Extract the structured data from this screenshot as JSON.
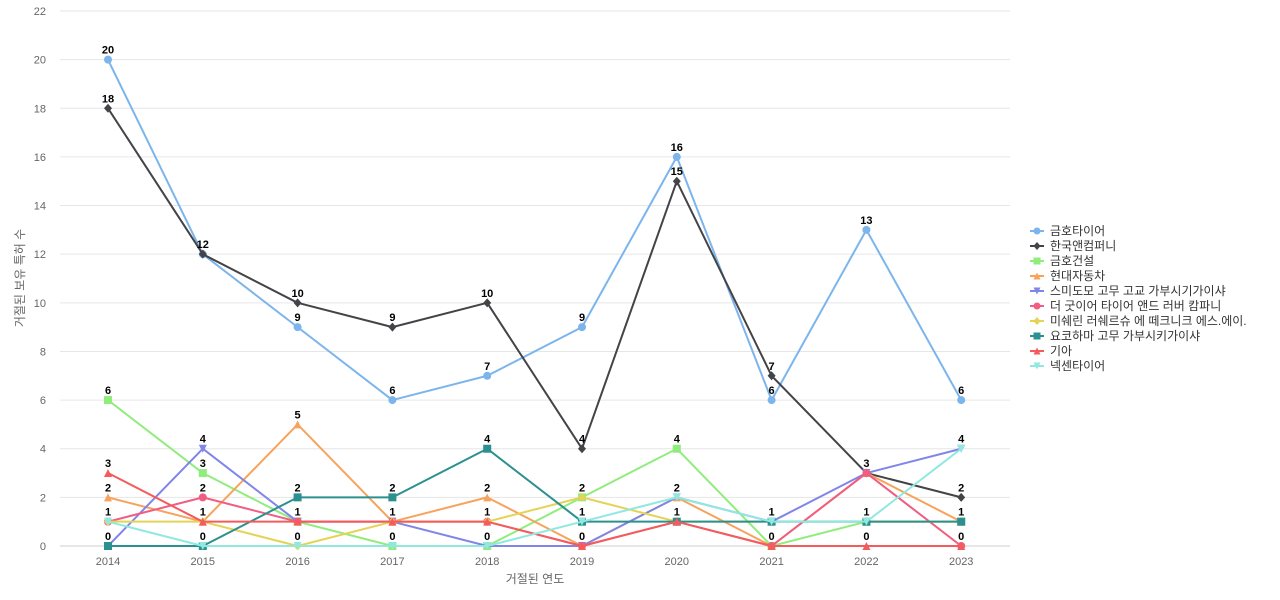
{
  "chart_data": {
    "type": "line",
    "xlabel": "거절된 연도",
    "ylabel": "거절된 보유 특허 수",
    "ylim": [
      0,
      22
    ],
    "yticks": [
      0,
      2,
      4,
      6,
      8,
      10,
      12,
      14,
      16,
      18,
      20,
      22
    ],
    "categories": [
      "2014",
      "2015",
      "2016",
      "2017",
      "2018",
      "2019",
      "2020",
      "2021",
      "2022",
      "2023"
    ],
    "grid": true,
    "legend_position": "right",
    "series": [
      {
        "name": "금호타이어",
        "color": "#7cb5ec",
        "marker": "circle",
        "values": [
          20,
          12,
          9,
          6,
          7,
          9,
          16,
          6,
          13,
          6
        ]
      },
      {
        "name": "한국앤컴퍼니",
        "color": "#434348",
        "marker": "diamond",
        "values": [
          18,
          12,
          10,
          9,
          10,
          4,
          15,
          7,
          3,
          2
        ]
      },
      {
        "name": "금호건설",
        "color": "#90ed7d",
        "marker": "square",
        "values": [
          6,
          3,
          1,
          0,
          0,
          2,
          4,
          0,
          1,
          1
        ]
      },
      {
        "name": "현대자동차",
        "color": "#f7a35c",
        "marker": "triangle",
        "values": [
          2,
          1,
          5,
          1,
          2,
          0,
          2,
          0,
          3,
          1
        ]
      },
      {
        "name": "스미도모 고무 고교 가부시기가이샤",
        "color": "#8085e9",
        "marker": "triangle-down",
        "values": [
          0,
          4,
          1,
          1,
          0,
          0,
          2,
          1,
          3,
          4
        ]
      },
      {
        "name": "더 굿이어 타이어 앤드 러버 캄파니",
        "color": "#f15c80",
        "marker": "circle",
        "values": [
          1,
          2,
          1,
          1,
          1,
          0,
          1,
          0,
          3,
          0
        ]
      },
      {
        "name": "미쉐린 러쉐르슈 에 떼크니크 에스.에이.",
        "color": "#e4d354",
        "marker": "diamond",
        "values": [
          1,
          1,
          0,
          1,
          1,
          2,
          1,
          1,
          1,
          1
        ]
      },
      {
        "name": "요코하마 고무 가부시키가이샤",
        "color": "#2b908f",
        "marker": "square",
        "values": [
          0,
          0,
          2,
          2,
          4,
          1,
          1,
          1,
          1,
          1
        ]
      },
      {
        "name": "기아",
        "color": "#f45b5b",
        "marker": "triangle",
        "values": [
          3,
          1,
          1,
          1,
          1,
          0,
          1,
          0,
          0,
          0
        ]
      },
      {
        "name": "넥센타이어",
        "color": "#91e8e1",
        "marker": "triangle-down",
        "values": [
          1,
          0,
          0,
          0,
          0,
          1,
          2,
          1,
          1,
          4
        ]
      }
    ],
    "data_labels": [
      {
        "series": 0,
        "index": 0,
        "text": "20"
      },
      {
        "series": 1,
        "index": 0,
        "text": "18"
      },
      {
        "series": 2,
        "index": 0,
        "text": "6"
      },
      {
        "series": 8,
        "index": 0,
        "text": "3"
      },
      {
        "series": 3,
        "index": 0,
        "text": "2"
      },
      {
        "series": 5,
        "index": 0,
        "text": "1"
      },
      {
        "series": 4,
        "index": 0,
        "text": "0"
      },
      {
        "series": 0,
        "index": 1,
        "text": "12"
      },
      {
        "series": 4,
        "index": 1,
        "text": "4"
      },
      {
        "series": 2,
        "index": 1,
        "text": "3"
      },
      {
        "series": 5,
        "index": 1,
        "text": "2"
      },
      {
        "series": 3,
        "index": 1,
        "text": "1"
      },
      {
        "series": 7,
        "index": 1,
        "text": "0"
      },
      {
        "series": 1,
        "index": 2,
        "text": "10"
      },
      {
        "series": 0,
        "index": 2,
        "text": "9"
      },
      {
        "series": 3,
        "index": 2,
        "text": "5"
      },
      {
        "series": 7,
        "index": 2,
        "text": "2"
      },
      {
        "series": 2,
        "index": 2,
        "text": "1"
      },
      {
        "series": 6,
        "index": 2,
        "text": "0"
      },
      {
        "series": 1,
        "index": 3,
        "text": "9"
      },
      {
        "series": 0,
        "index": 3,
        "text": "6"
      },
      {
        "series": 7,
        "index": 3,
        "text": "2"
      },
      {
        "series": 3,
        "index": 3,
        "text": "1"
      },
      {
        "series": 2,
        "index": 3,
        "text": "0"
      },
      {
        "series": 1,
        "index": 4,
        "text": "10"
      },
      {
        "series": 0,
        "index": 4,
        "text": "7"
      },
      {
        "series": 7,
        "index": 4,
        "text": "4"
      },
      {
        "series": 3,
        "index": 4,
        "text": "2"
      },
      {
        "series": 5,
        "index": 4,
        "text": "1"
      },
      {
        "series": 2,
        "index": 4,
        "text": "0"
      },
      {
        "series": 0,
        "index": 5,
        "text": "9"
      },
      {
        "series": 1,
        "index": 5,
        "text": "4"
      },
      {
        "series": 2,
        "index": 5,
        "text": "2"
      },
      {
        "series": 7,
        "index": 5,
        "text": "1"
      },
      {
        "series": 3,
        "index": 5,
        "text": "0"
      },
      {
        "series": 0,
        "index": 6,
        "text": "16"
      },
      {
        "series": 1,
        "index": 6,
        "text": "15"
      },
      {
        "series": 2,
        "index": 6,
        "text": "4"
      },
      {
        "series": 3,
        "index": 6,
        "text": "2"
      },
      {
        "series": 5,
        "index": 6,
        "text": "1"
      },
      {
        "series": 1,
        "index": 7,
        "text": "7"
      },
      {
        "series": 0,
        "index": 7,
        "text": "6"
      },
      {
        "series": 4,
        "index": 7,
        "text": "1"
      },
      {
        "series": 2,
        "index": 7,
        "text": "0"
      },
      {
        "series": 0,
        "index": 8,
        "text": "13"
      },
      {
        "series": 4,
        "index": 8,
        "text": "3"
      },
      {
        "series": 2,
        "index": 8,
        "text": "1"
      },
      {
        "series": 8,
        "index": 8,
        "text": "0"
      },
      {
        "series": 0,
        "index": 9,
        "text": "6"
      },
      {
        "series": 4,
        "index": 9,
        "text": "4"
      },
      {
        "series": 1,
        "index": 9,
        "text": "2"
      },
      {
        "series": 2,
        "index": 9,
        "text": "1"
      },
      {
        "series": 5,
        "index": 9,
        "text": "0"
      }
    ]
  }
}
